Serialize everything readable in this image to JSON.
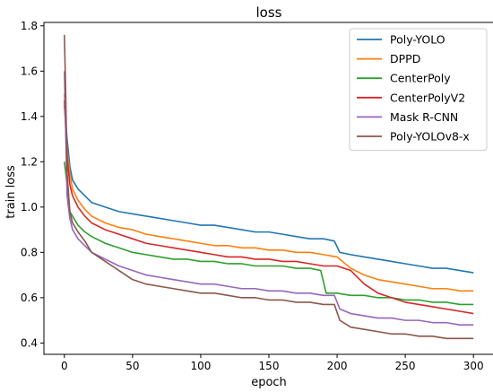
{
  "chart_data": {
    "type": "line",
    "title": "loss",
    "xlabel": "epoch",
    "ylabel": "train loss",
    "xlim": [
      -15,
      315
    ],
    "ylim": [
      0.35,
      1.815
    ],
    "xticks": [
      0,
      50,
      100,
      150,
      200,
      250,
      300
    ],
    "yticks": [
      0.4,
      0.6,
      0.8,
      1.0,
      1.2,
      1.4,
      1.6,
      1.8
    ],
    "ytick_labels": [
      "0.4",
      "0.6",
      "0.8",
      "1.0",
      "1.2",
      "1.4",
      "1.6",
      "1.8"
    ],
    "legend_position": "top-right",
    "grid": false,
    "series": [
      {
        "name": "Poly-YOLO",
        "color": "#1f77b4",
        "x": [
          0,
          2,
          4,
          6,
          10,
          15,
          20,
          30,
          40,
          50,
          60,
          70,
          80,
          90,
          100,
          110,
          120,
          130,
          140,
          150,
          160,
          170,
          180,
          190,
          198,
          202,
          210,
          220,
          230,
          240,
          250,
          260,
          270,
          280,
          290,
          300
        ],
        "y": [
          1.45,
          1.3,
          1.18,
          1.12,
          1.08,
          1.05,
          1.02,
          1.0,
          0.98,
          0.97,
          0.96,
          0.95,
          0.94,
          0.93,
          0.92,
          0.92,
          0.91,
          0.9,
          0.89,
          0.89,
          0.88,
          0.87,
          0.86,
          0.86,
          0.85,
          0.8,
          0.79,
          0.78,
          0.77,
          0.76,
          0.75,
          0.74,
          0.73,
          0.73,
          0.72,
          0.71
        ]
      },
      {
        "name": "DPPD",
        "color": "#ff7f0e",
        "x": [
          0,
          2,
          4,
          6,
          10,
          15,
          20,
          30,
          40,
          50,
          60,
          70,
          80,
          90,
          100,
          110,
          120,
          130,
          140,
          150,
          160,
          170,
          180,
          190,
          200,
          210,
          220,
          230,
          240,
          250,
          260,
          270,
          280,
          290,
          300
        ],
        "y": [
          1.5,
          1.25,
          1.15,
          1.08,
          1.03,
          0.99,
          0.96,
          0.93,
          0.91,
          0.9,
          0.88,
          0.87,
          0.86,
          0.85,
          0.84,
          0.83,
          0.83,
          0.82,
          0.82,
          0.81,
          0.81,
          0.8,
          0.8,
          0.79,
          0.78,
          0.73,
          0.7,
          0.68,
          0.67,
          0.66,
          0.65,
          0.64,
          0.64,
          0.63,
          0.63
        ]
      },
      {
        "name": "CenterPoly",
        "color": "#2ca02c",
        "x": [
          0,
          2,
          4,
          6,
          10,
          15,
          20,
          30,
          40,
          50,
          60,
          70,
          80,
          90,
          100,
          110,
          120,
          130,
          140,
          150,
          160,
          170,
          180,
          188,
          192,
          200,
          210,
          220,
          230,
          240,
          250,
          260,
          270,
          280,
          290,
          300
        ],
        "y": [
          1.2,
          1.1,
          0.98,
          0.96,
          0.92,
          0.89,
          0.87,
          0.84,
          0.82,
          0.8,
          0.79,
          0.78,
          0.77,
          0.77,
          0.76,
          0.76,
          0.75,
          0.75,
          0.74,
          0.74,
          0.74,
          0.73,
          0.73,
          0.72,
          0.62,
          0.62,
          0.61,
          0.61,
          0.6,
          0.6,
          0.59,
          0.59,
          0.58,
          0.58,
          0.57,
          0.57
        ]
      },
      {
        "name": "CenterPolyV2",
        "color": "#d62728",
        "x": [
          0,
          2,
          4,
          6,
          10,
          15,
          20,
          30,
          40,
          50,
          60,
          70,
          80,
          90,
          100,
          110,
          120,
          130,
          140,
          150,
          160,
          170,
          180,
          190,
          200,
          210,
          220,
          230,
          240,
          250,
          260,
          270,
          280,
          290,
          300
        ],
        "y": [
          1.47,
          1.22,
          1.1,
          1.05,
          1.0,
          0.96,
          0.93,
          0.9,
          0.88,
          0.86,
          0.84,
          0.83,
          0.82,
          0.81,
          0.8,
          0.79,
          0.78,
          0.78,
          0.77,
          0.77,
          0.76,
          0.76,
          0.75,
          0.74,
          0.74,
          0.72,
          0.66,
          0.62,
          0.6,
          0.58,
          0.57,
          0.56,
          0.55,
          0.54,
          0.53
        ]
      },
      {
        "name": "Mask R-CNN",
        "color": "#9467bd",
        "x": [
          0,
          2,
          4,
          6,
          10,
          15,
          20,
          30,
          40,
          50,
          60,
          70,
          80,
          90,
          100,
          110,
          120,
          130,
          140,
          150,
          160,
          170,
          180,
          190,
          198,
          202,
          210,
          220,
          230,
          240,
          250,
          260,
          270,
          280,
          290,
          300
        ],
        "y": [
          1.6,
          1.05,
          0.95,
          0.9,
          0.86,
          0.83,
          0.8,
          0.77,
          0.74,
          0.72,
          0.7,
          0.69,
          0.68,
          0.67,
          0.66,
          0.66,
          0.65,
          0.64,
          0.64,
          0.63,
          0.63,
          0.62,
          0.62,
          0.61,
          0.61,
          0.55,
          0.53,
          0.52,
          0.51,
          0.51,
          0.5,
          0.5,
          0.49,
          0.49,
          0.48,
          0.48
        ]
      },
      {
        "name": "Poly-YOLOv8-x",
        "color": "#8c564b",
        "x": [
          0,
          1,
          2,
          4,
          6,
          10,
          15,
          20,
          30,
          40,
          50,
          60,
          70,
          80,
          90,
          100,
          110,
          120,
          130,
          140,
          150,
          160,
          170,
          180,
          190,
          198,
          202,
          210,
          220,
          230,
          240,
          250,
          260,
          270,
          280,
          290,
          300
        ],
        "y": [
          1.76,
          1.5,
          1.15,
          0.98,
          0.93,
          0.89,
          0.85,
          0.8,
          0.76,
          0.72,
          0.68,
          0.66,
          0.65,
          0.64,
          0.63,
          0.62,
          0.62,
          0.61,
          0.6,
          0.6,
          0.59,
          0.59,
          0.58,
          0.58,
          0.57,
          0.57,
          0.5,
          0.47,
          0.46,
          0.45,
          0.44,
          0.44,
          0.43,
          0.43,
          0.42,
          0.42,
          0.42
        ]
      }
    ]
  }
}
